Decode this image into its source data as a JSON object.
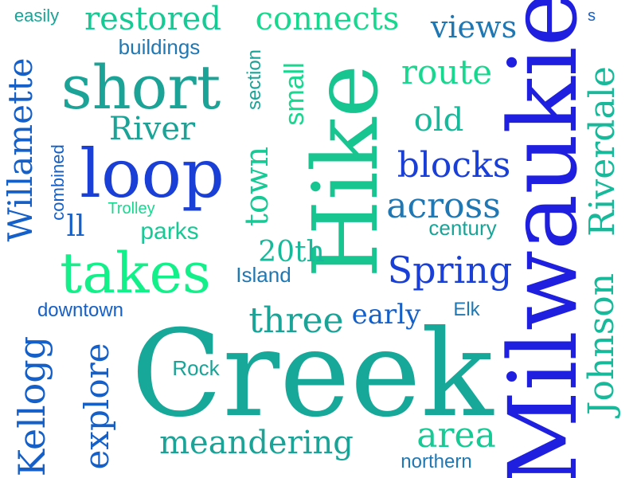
{
  "palette": {
    "deep_blue": "#1f1fe0",
    "royal_blue": "#1a3fd6",
    "medium_blue": "#1560c8",
    "steel_blue": "#1f78b4",
    "teal": "#1aa396",
    "sea_green": "#17b99a",
    "spring_green": "#18d88f",
    "mint_green": "#13f08a"
  },
  "words": {
    "milwaukie": "Milwaukie",
    "creek": "Creek",
    "hike": "Hike",
    "short": "short",
    "loop": "loop",
    "takes": "takes",
    "restored": "restored",
    "connects": "connects",
    "views": "views",
    "easily": "easily",
    "s": "s",
    "buildings": "buildings",
    "willamette": "Willamette",
    "river": "River",
    "section": "section",
    "small": "small",
    "route": "route",
    "old": "old",
    "blocks": "blocks",
    "town": "town",
    "across": "across",
    "riverdale": "Riverdale",
    "combined": "combined",
    "trolley": "Trolley",
    "ll": "ll",
    "parks": "parks",
    "century": "century",
    "twentieth": "20th",
    "spring": "Spring",
    "island": "Island",
    "johnson": "Johnson",
    "downtown": "downtown",
    "three": "three",
    "early": "early",
    "elk": "Elk",
    "kellogg": "Kellogg",
    "explore": "explore",
    "rock": "Rock",
    "meandering": "meandering",
    "area": "area",
    "northern": "northern"
  }
}
